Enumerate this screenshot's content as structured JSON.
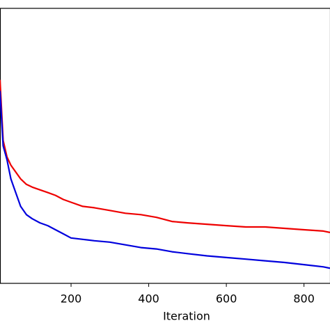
{
  "chart_data": {
    "type": "line",
    "x_label": "Iteration",
    "x": [
      17,
      25,
      35,
      45,
      55,
      70,
      85,
      100,
      120,
      140,
      160,
      180,
      200,
      230,
      260,
      300,
      340,
      380,
      420,
      460,
      500,
      550,
      600,
      650,
      700,
      750,
      800,
      850,
      867
    ],
    "series": [
      {
        "color": "#ee0000",
        "values": [
          74,
          52,
          46,
          43,
          41,
          38,
          36,
          35,
          34,
          33,
          32,
          30.5,
          29.5,
          28,
          27.5,
          26.5,
          25.5,
          25,
          24,
          22.5,
          22,
          21.5,
          21,
          20.5,
          20.5,
          20,
          19.5,
          19,
          18.5
        ]
      },
      {
        "color": "#0000dd",
        "values": [
          70,
          50,
          45,
          38,
          34,
          28,
          25,
          23.5,
          22,
          21,
          19.5,
          18,
          16.5,
          16,
          15.5,
          15,
          14,
          13,
          12.5,
          11.5,
          10.8,
          10,
          9.4,
          8.8,
          8.2,
          7.6,
          6.8,
          6,
          5.5
        ]
      }
    ],
    "xlim": [
      17,
      867
    ],
    "xticks": [
      200,
      400,
      600,
      800
    ],
    "ylim": [
      0,
      100
    ]
  }
}
